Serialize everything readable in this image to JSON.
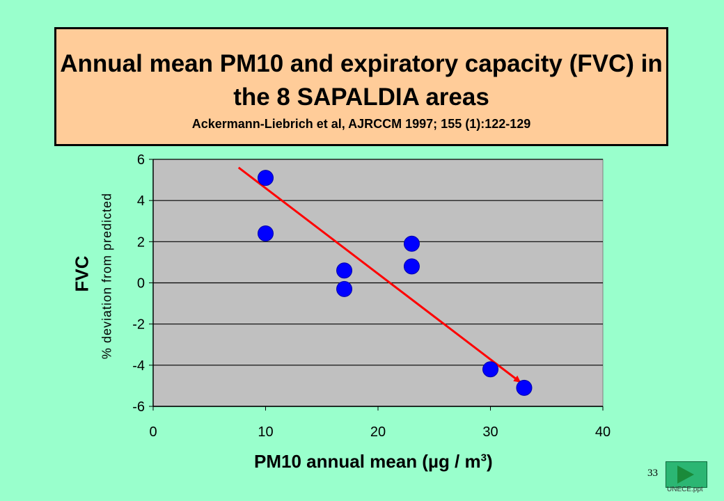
{
  "title": {
    "main": "Annual mean PM10 and expiratory capacity (FVC) in the 8 SAPALDIA areas",
    "citation": "Ackermann-Liebrich et al, AJRCCM 1997; 155 (1):122-129"
  },
  "chart_data": {
    "type": "scatter",
    "title": "",
    "ylabel_main": "FVC",
    "ylabel": "% deviation from predicted",
    "xlabel_text": "PM10 annual mean   (",
    "xlabel_unit": "µg / m",
    "xlabel_sup": "3",
    "xlabel_close": ")",
    "xlim": [
      0,
      40
    ],
    "ylim": [
      -6,
      6
    ],
    "x_ticks": [
      0,
      10,
      20,
      30,
      40
    ],
    "y_ticks": [
      6,
      4,
      2,
      0,
      -2,
      -4,
      -6
    ],
    "grid": true,
    "points": [
      {
        "x": 10,
        "y": 5.1
      },
      {
        "x": 10,
        "y": 2.4
      },
      {
        "x": 17,
        "y": 0.6
      },
      {
        "x": 17,
        "y": -0.3
      },
      {
        "x": 23,
        "y": 1.9
      },
      {
        "x": 23,
        "y": 0.8
      },
      {
        "x": 30,
        "y": -4.2
      },
      {
        "x": 33,
        "y": -5.1
      }
    ],
    "trend_arrow": {
      "x1": 7.6,
      "y1": 5.6,
      "x2": 32.6,
      "y2": -4.8
    },
    "colors": {
      "points": "#0000ff",
      "arrow": "#ff0000",
      "plot_bg": "#c0c0c0",
      "page_bg": "#99ffcc",
      "title_bg": "#ffcc99"
    }
  },
  "footer": {
    "slide_number": "33",
    "file": "UNECE.ppt",
    "next_button": "next-arrow-icon"
  }
}
